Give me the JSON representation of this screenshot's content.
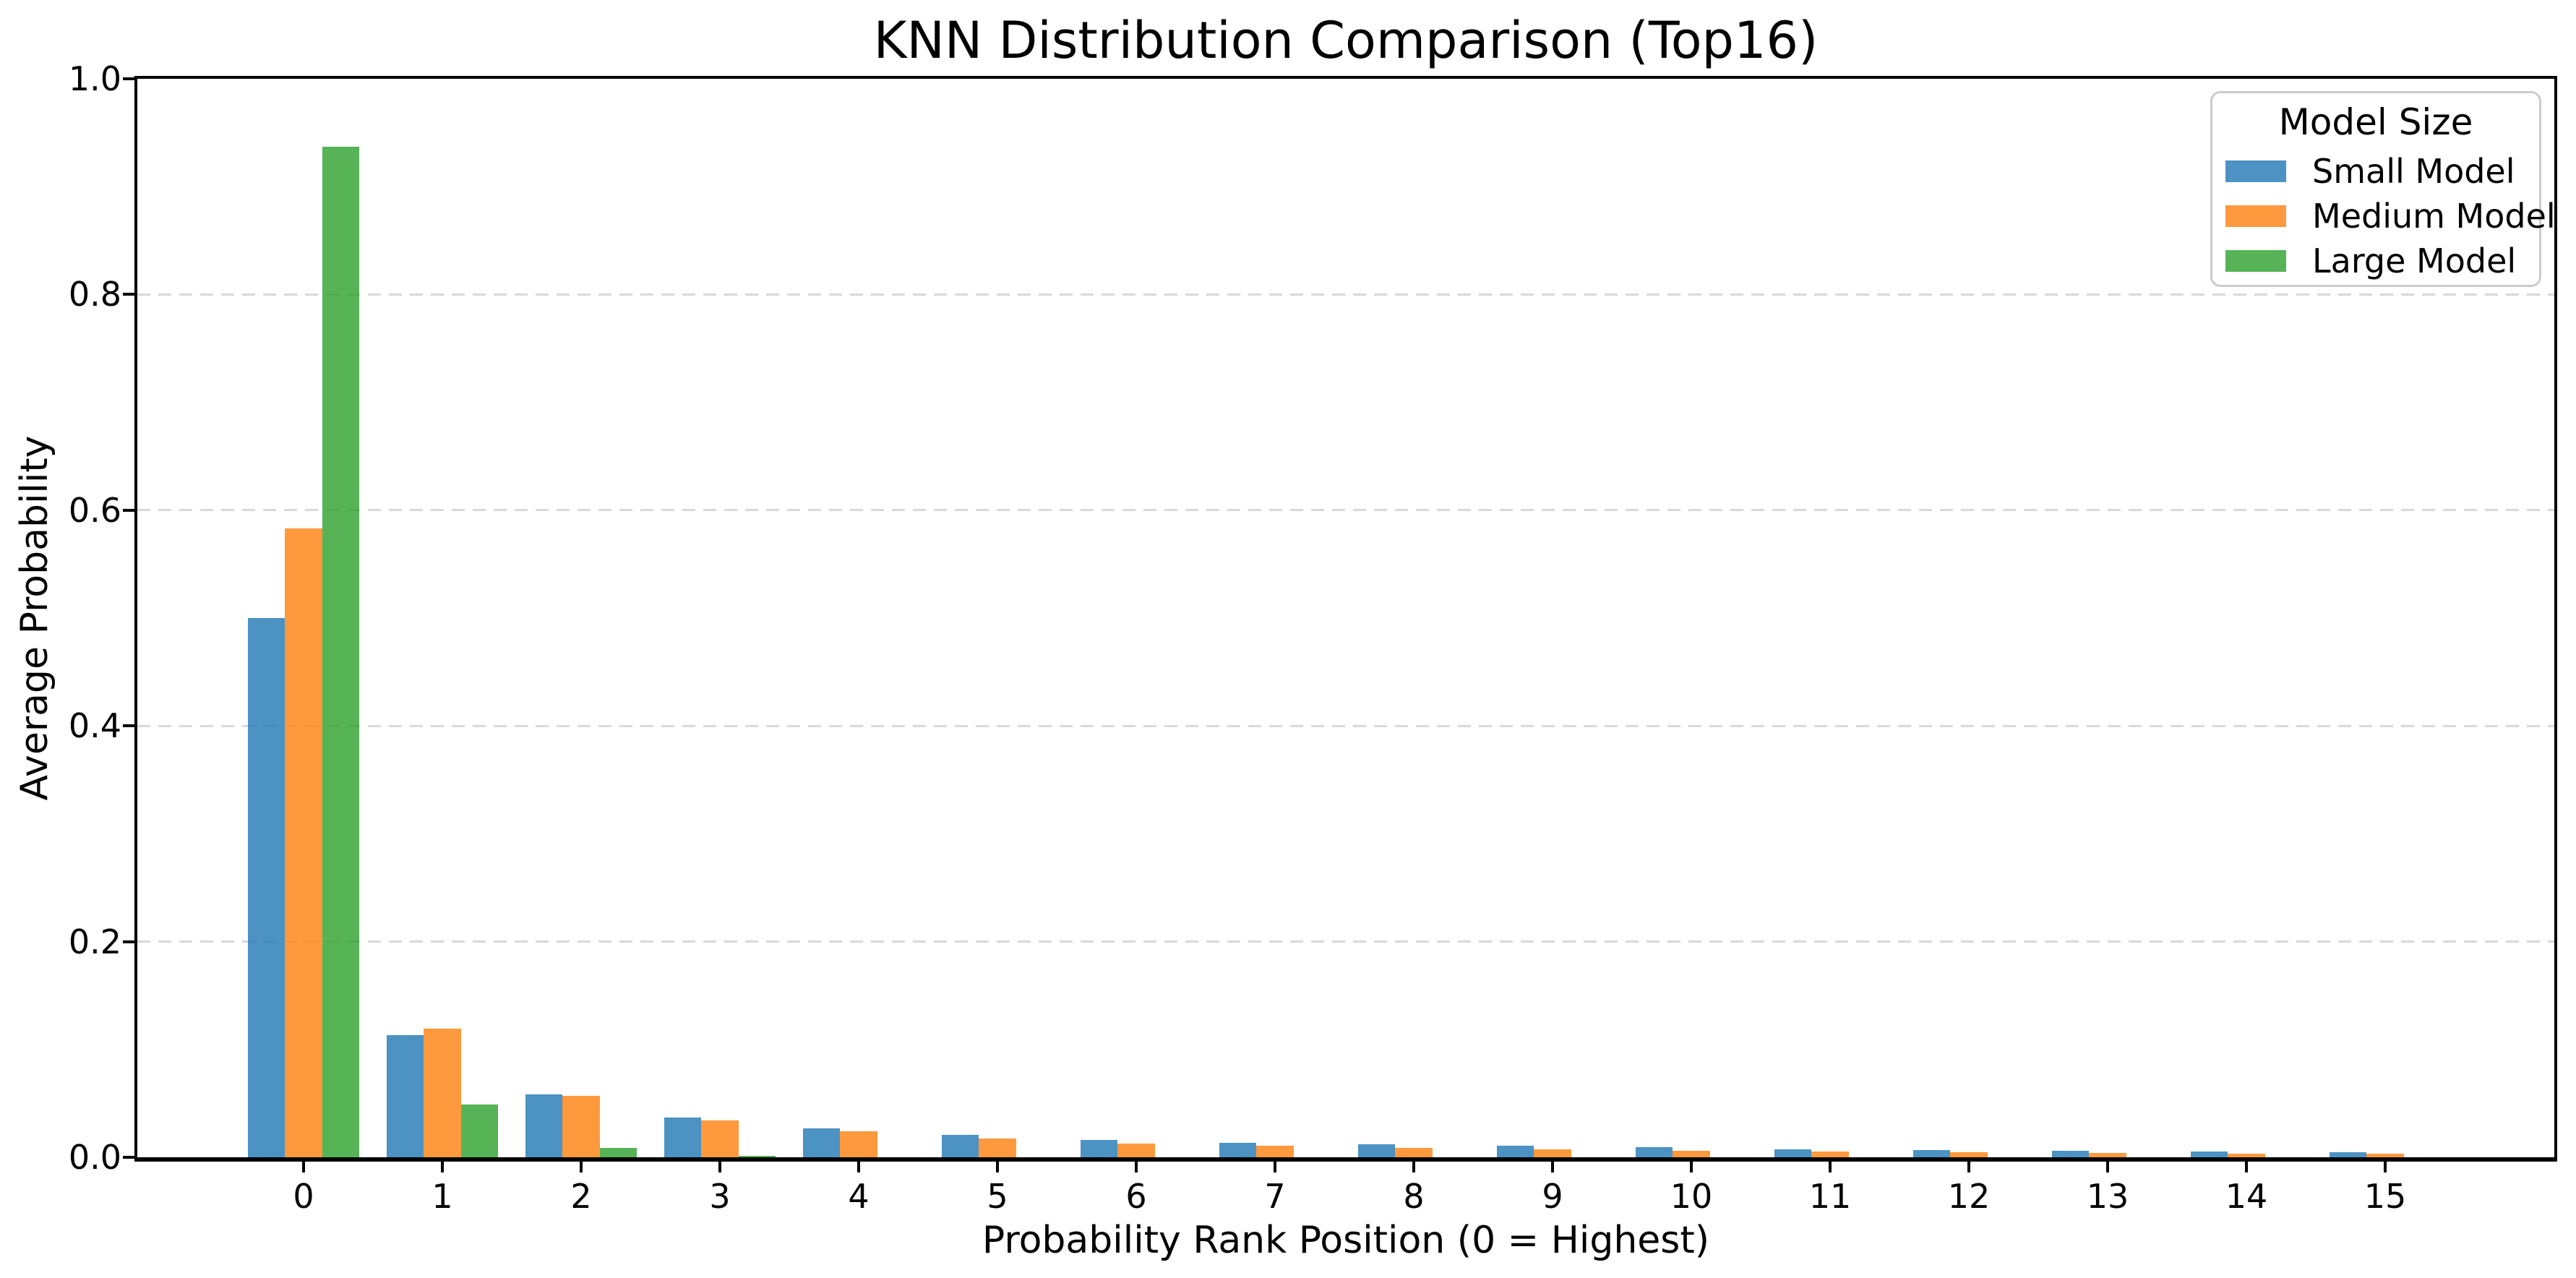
{
  "figure": {
    "title": "KNN Distribution Comparison (Top16)",
    "xlabel": "Probability Rank Position (0 = Highest)",
    "ylabel": "Average Probability"
  },
  "legend": {
    "title": "Model Size"
  },
  "chart_data": {
    "type": "bar",
    "title": "KNN Distribution Comparison (Top16)",
    "xlabel": "Probability Rank Position (0 = Highest)",
    "ylabel": "Average Probability",
    "categories": [
      "0",
      "1",
      "2",
      "3",
      "4",
      "5",
      "6",
      "7",
      "8",
      "9",
      "10",
      "11",
      "12",
      "13",
      "14",
      "15"
    ],
    "series": [
      {
        "name": "Small Model",
        "color": "#1f77b4",
        "values": [
          0.5,
          0.113,
          0.058,
          0.037,
          0.027,
          0.021,
          0.016,
          0.0135,
          0.012,
          0.0105,
          0.0095,
          0.0075,
          0.0065,
          0.006,
          0.0055,
          0.0048
        ]
      },
      {
        "name": "Medium Model",
        "color": "#ff7f0e",
        "values": [
          0.583,
          0.119,
          0.057,
          0.034,
          0.024,
          0.0175,
          0.013,
          0.0105,
          0.0085,
          0.0075,
          0.006,
          0.0052,
          0.0047,
          0.004,
          0.0035,
          0.0035
        ]
      },
      {
        "name": "Large Model",
        "color": "#2ca02c",
        "values": [
          0.937,
          0.049,
          0.009,
          0.0015,
          0.0,
          0.0,
          0.0,
          0.0,
          0.0,
          0.0,
          0.0,
          0.0,
          0.0,
          0.0,
          0.0,
          0.0
        ]
      }
    ],
    "ylim": [
      0.0,
      1.0
    ],
    "yticks": [
      "0.0",
      "0.2",
      "0.4",
      "0.6",
      "0.8",
      "1.0"
    ],
    "grid": "horizontal-dashed",
    "bar_alpha": 0.8,
    "legend_title": "Model Size",
    "legend_position": "upper-right"
  }
}
